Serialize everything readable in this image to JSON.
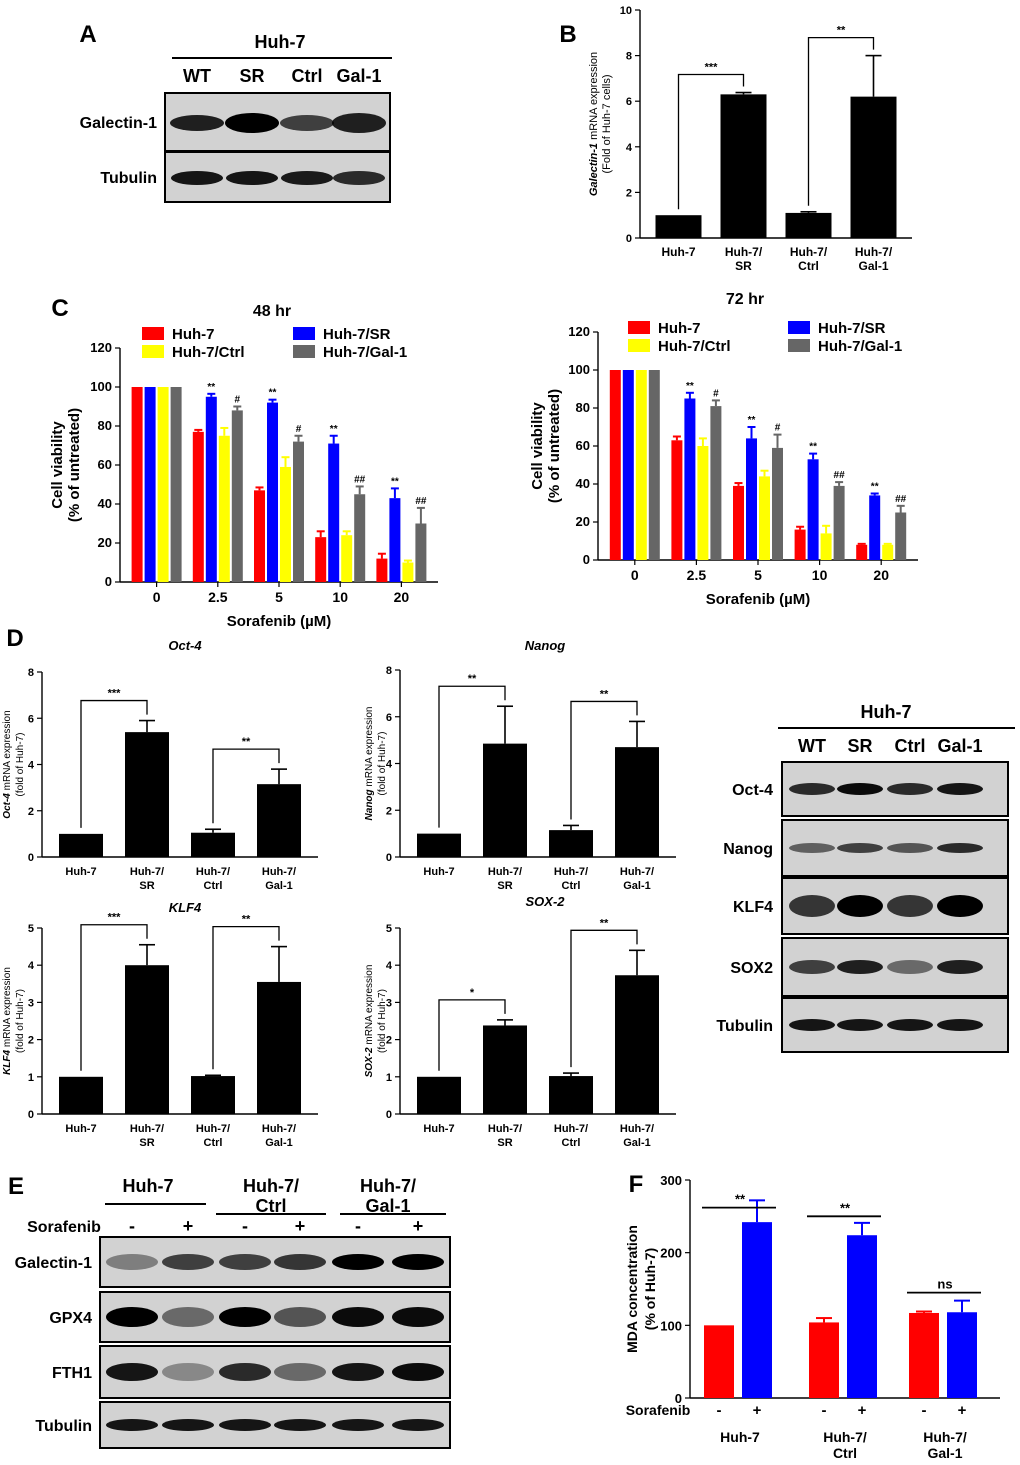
{
  "panels": {
    "A": {
      "letter": "A",
      "cell_line": "Huh-7",
      "lanes": [
        "WT",
        "SR",
        "Ctrl",
        "Gal-1"
      ],
      "rows": [
        "Galectin-1",
        "Tubulin"
      ]
    },
    "D_blot": {
      "cell_line": "Huh-7",
      "lanes": [
        "WT",
        "SR",
        "Ctrl",
        "Gal-1"
      ],
      "rows": [
        "Oct-4",
        "Nanog",
        "KLF4",
        "SOX2",
        "Tubulin"
      ]
    },
    "E": {
      "letter": "E",
      "groups": [
        "Huh-7",
        "Huh-7/\nCtrl",
        "Huh-7/\nGal-1"
      ],
      "treatment_label": "Sorafenib",
      "treatment_signs": [
        "-",
        "+",
        "-",
        "+",
        "-",
        "+"
      ],
      "rows": [
        "Galectin-1",
        "GPX4",
        "FTH1",
        "Tubulin"
      ]
    },
    "C": {
      "letter": "C"
    },
    "D": {
      "letter": "D"
    }
  },
  "chart_data": [
    {
      "id": "B",
      "letter": "B",
      "type": "bar",
      "categories": [
        "Huh-7",
        "Huh-7/\nSR",
        "Huh-7/\nCtrl",
        "Huh-7/\nGal-1"
      ],
      "values": [
        1.0,
        6.3,
        1.1,
        6.2
      ],
      "errors": [
        0,
        0.08,
        0.05,
        1.8
      ],
      "ylabel_italic": "Galectin-1",
      "ylabel_rest": " mRNA expression",
      "ylabel2": "(Fold of Huh-7 cells)",
      "ylim": [
        0,
        10
      ],
      "yticks": [
        0,
        2,
        4,
        6,
        8,
        10
      ],
      "brackets": [
        {
          "from": 0,
          "to": 1,
          "label": "***"
        },
        {
          "from": 2,
          "to": 3,
          "label": "**"
        }
      ],
      "color": "#000000"
    },
    {
      "id": "C48",
      "type": "bar",
      "title": "48 hr",
      "categories": [
        "0",
        "2.5",
        "5",
        "10",
        "20"
      ],
      "xlabel": "Sorafenib (µM)",
      "ylabel": "Cell viability",
      "ylabel2": "(% of untreated)",
      "ylim": [
        0,
        120
      ],
      "yticks": [
        0,
        20,
        40,
        60,
        80,
        100,
        120
      ],
      "series": [
        {
          "name": "Huh-7",
          "color": "#ff0000",
          "values": [
            100,
            77,
            47,
            23,
            12
          ],
          "errors": [
            0,
            1,
            1.5,
            3,
            2.5
          ],
          "labels": [
            "",
            "",
            "",
            "",
            ""
          ]
        },
        {
          "name": "Huh-7/SR",
          "color": "#0000ff",
          "values": [
            100,
            95,
            92,
            71,
            43
          ],
          "errors": [
            0,
            1.5,
            1.5,
            4,
            5
          ],
          "labels": [
            "",
            "**",
            "**",
            "**",
            "**"
          ]
        },
        {
          "name": "Huh-7/Ctrl",
          "color": "#ffff00",
          "values": [
            100,
            75,
            59,
            24,
            10
          ],
          "errors": [
            0,
            4,
            5,
            2,
            1
          ],
          "labels": [
            "",
            "",
            "",
            "",
            ""
          ]
        },
        {
          "name": "Huh-7/Gal-1",
          "color": "#666666",
          "values": [
            100,
            88,
            72,
            45,
            30
          ],
          "errors": [
            0,
            2,
            3,
            4,
            8
          ],
          "labels": [
            "",
            "#",
            "#",
            "##",
            "##"
          ]
        }
      ]
    },
    {
      "id": "C72",
      "type": "bar",
      "title": "72 hr",
      "categories": [
        "0",
        "2.5",
        "5",
        "10",
        "20"
      ],
      "xlabel": "Sorafenib (µM)",
      "ylabel": "Cell viability",
      "ylabel2": "(% of untreated)",
      "ylim": [
        0,
        120
      ],
      "yticks": [
        0,
        20,
        40,
        60,
        80,
        100,
        120
      ],
      "series": [
        {
          "name": "Huh-7",
          "color": "#ff0000",
          "values": [
            100,
            63,
            39,
            16,
            8
          ],
          "errors": [
            0,
            2,
            1.5,
            1.5,
            0.5
          ],
          "labels": [
            "",
            "",
            "",
            "",
            ""
          ]
        },
        {
          "name": "Huh-7/SR",
          "color": "#0000ff",
          "values": [
            100,
            85,
            64,
            53,
            34
          ],
          "errors": [
            0,
            3,
            6,
            3,
            1
          ],
          "labels": [
            "",
            "**",
            "**",
            "**",
            "**"
          ]
        },
        {
          "name": "Huh-7/Ctrl",
          "color": "#ffff00",
          "values": [
            100,
            60,
            44,
            14,
            8
          ],
          "errors": [
            0,
            4,
            3,
            4,
            0.5
          ],
          "labels": [
            "",
            "",
            "",
            "",
            ""
          ]
        },
        {
          "name": "Huh-7/Gal-1",
          "color": "#666666",
          "values": [
            100,
            81,
            59,
            39,
            25
          ],
          "errors": [
            0,
            3,
            7,
            2,
            3.5
          ],
          "labels": [
            "",
            "#",
            "#",
            "##",
            "##"
          ]
        }
      ]
    },
    {
      "id": "Oct4",
      "type": "bar",
      "title": "Oct-4",
      "ylabel_italic": "Oct-4",
      "ylabel_rest": " mRNA expression",
      "ylabel2": "(fold of Huh-7)",
      "categories": [
        "Huh-7",
        "Huh-7/\nSR",
        "Huh-7/\nCtrl",
        "Huh-7/\nGal-1"
      ],
      "values": [
        1.0,
        5.4,
        1.05,
        3.15
      ],
      "errors": [
        0,
        0.5,
        0.15,
        0.65
      ],
      "ylim": [
        0,
        8
      ],
      "yticks": [
        0,
        2,
        4,
        6,
        8
      ],
      "brackets": [
        {
          "from": 0,
          "to": 1,
          "label": "***"
        },
        {
          "from": 2,
          "to": 3,
          "label": "**"
        }
      ],
      "color": "#000000"
    },
    {
      "id": "Nanog",
      "type": "bar",
      "title": "Nanog",
      "ylabel_italic": "Nanog",
      "ylabel_rest": " mRNA expression",
      "ylabel2": "(fold of Huh-7)",
      "categories": [
        "Huh-7",
        "Huh-7/\nSR",
        "Huh-7/\nCtrl",
        "Huh-7/\nGal-1"
      ],
      "values": [
        1.0,
        4.85,
        1.15,
        4.7
      ],
      "errors": [
        0,
        1.6,
        0.2,
        1.1
      ],
      "ylim": [
        0,
        8
      ],
      "yticks": [
        0,
        2,
        4,
        6,
        8
      ],
      "brackets": [
        {
          "from": 0,
          "to": 1,
          "label": "**"
        },
        {
          "from": 2,
          "to": 3,
          "label": "**"
        }
      ],
      "color": "#000000"
    },
    {
      "id": "KLF4",
      "type": "bar",
      "title": "KLF4",
      "ylabel_italic": "KLF4",
      "ylabel_rest": " mRNA expression",
      "ylabel2": "(fold of Huh-7)",
      "categories": [
        "Huh-7",
        "Huh-7/\nSR",
        "Huh-7/\nCtrl",
        "Huh-7/\nGal-1"
      ],
      "values": [
        1.0,
        4.0,
        1.02,
        3.55
      ],
      "errors": [
        0,
        0.55,
        0.02,
        0.95
      ],
      "ylim": [
        0,
        5
      ],
      "yticks": [
        0,
        1,
        2,
        3,
        4,
        5
      ],
      "brackets": [
        {
          "from": 0,
          "to": 1,
          "label": "***"
        },
        {
          "from": 2,
          "to": 3,
          "label": "**"
        }
      ],
      "color": "#000000"
    },
    {
      "id": "SOX2",
      "type": "bar",
      "title": "SOX-2",
      "ylabel_italic": "SOX-2",
      "ylabel_rest": " mRNA expression",
      "ylabel2": "(fold of Huh-7)",
      "categories": [
        "Huh-7",
        "Huh-7/\nSR",
        "Huh-7/\nCtrl",
        "Huh-7/\nGal-1"
      ],
      "values": [
        1.0,
        2.38,
        1.02,
        3.73
      ],
      "errors": [
        0,
        0.15,
        0.08,
        0.67
      ],
      "ylim": [
        0,
        5
      ],
      "yticks": [
        0,
        1,
        2,
        3,
        4,
        5
      ],
      "brackets": [
        {
          "from": 0,
          "to": 1,
          "label": "*"
        },
        {
          "from": 2,
          "to": 3,
          "label": "**"
        }
      ],
      "color": "#000000"
    },
    {
      "id": "F",
      "letter": "F",
      "type": "bar",
      "groups": [
        "Huh-7",
        "Huh-7/\nCtrl",
        "Huh-7/\nGal-1"
      ],
      "treatment_label": "Sorafenib",
      "treatment_signs": [
        "-",
        "+"
      ],
      "ylabel": "MDA concentration",
      "ylabel2": "(% of Huh-7)",
      "ylim": [
        0,
        300
      ],
      "yticks": [
        0,
        100,
        200,
        300
      ],
      "series": [
        {
          "name": "-",
          "color": "#ff0000",
          "values": [
            100,
            104,
            117
          ],
          "errors": [
            0,
            6,
            2
          ]
        },
        {
          "name": "+",
          "color": "#0000ff",
          "values": [
            242,
            224,
            118
          ],
          "errors": [
            30,
            17,
            16
          ]
        }
      ],
      "group_labels": [
        "**",
        "**",
        "ns"
      ]
    }
  ]
}
